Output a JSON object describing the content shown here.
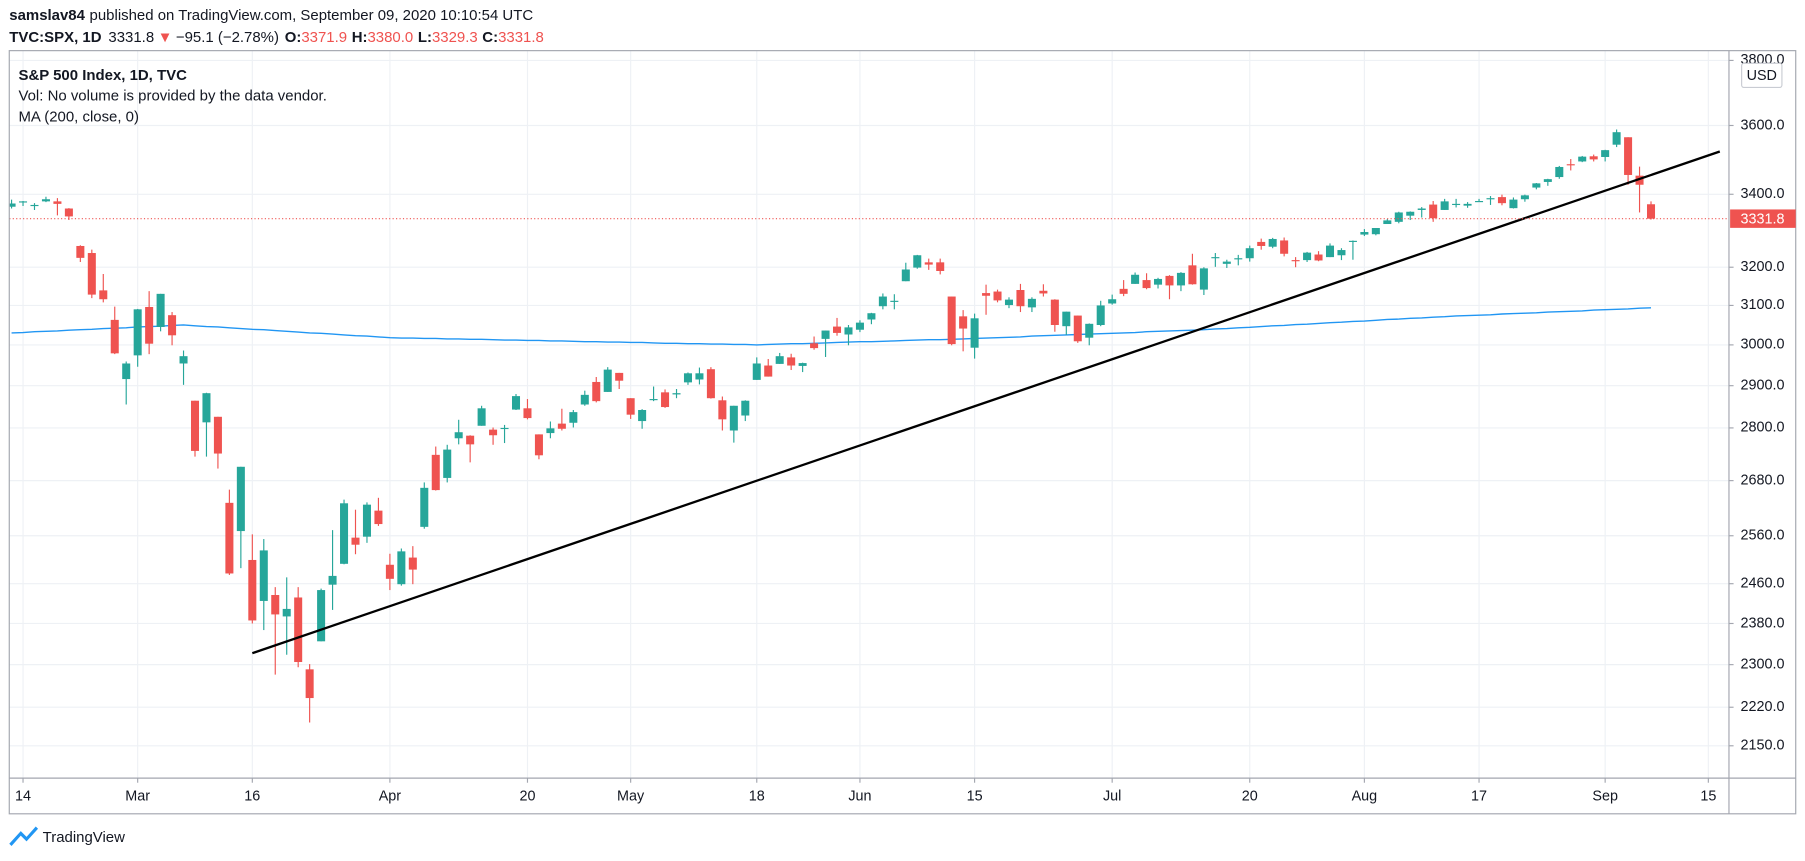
{
  "header": {
    "user": "samslav84",
    "published": "published on TradingView.com, September 09, 2020 10:10:54 UTC",
    "symbol": "TVC:SPX, 1D",
    "price": "3331.8",
    "arrow": "▼",
    "change": "−95.1 (−2.78%)",
    "o_label": "O:",
    "o": "3371.9",
    "h_label": "H:",
    "h": "3380.0",
    "l_label": "L:",
    "l": "3329.3",
    "c_label": "C:",
    "c": "3331.8"
  },
  "legend": {
    "title": "S&P 500 Index, 1D, TVC",
    "volume": "Vol: No volume is provided by the data vendor."
  },
  "currency": "USD",
  "brand": "TradingView",
  "chart_data": {
    "type": "candlestick",
    "log_scale": true,
    "grid": true,
    "up_color": "#26a69a",
    "down_color": "#ef5350",
    "categories": [
      "Feb 13",
      "Feb 14",
      "Feb 18",
      "Feb 19",
      "Feb 20",
      "Feb 21",
      "Feb 24",
      "Feb 25",
      "Feb 26",
      "Feb 27",
      "Feb 28",
      "Mar 2",
      "Mar 3",
      "Mar 4",
      "Mar 5",
      "Mar 6",
      "Mar 9",
      "Mar 10",
      "Mar 11",
      "Mar 12",
      "Mar 13",
      "Mar 16",
      "Mar 17",
      "Mar 18",
      "Mar 19",
      "Mar 20",
      "Mar 23",
      "Mar 24",
      "Mar 25",
      "Mar 26",
      "Mar 27",
      "Mar 30",
      "Mar 31",
      "Apr 1",
      "Apr 2",
      "Apr 3",
      "Apr 6",
      "Apr 7",
      "Apr 8",
      "Apr 9",
      "Apr 13",
      "Apr 14",
      "Apr 15",
      "Apr 16",
      "Apr 17",
      "Apr 20",
      "Apr 21",
      "Apr 22",
      "Apr 23",
      "Apr 24",
      "Apr 27",
      "Apr 28",
      "Apr 29",
      "Apr 30",
      "May 1",
      "May 4",
      "May 5",
      "May 6",
      "May 7",
      "May 8",
      "May 11",
      "May 12",
      "May 13",
      "May 14",
      "May 15",
      "May 18",
      "May 19",
      "May 20",
      "May 21",
      "May 22",
      "May 26",
      "May 27",
      "May 28",
      "May 29",
      "Jun 1",
      "Jun 2",
      "Jun 3",
      "Jun 4",
      "Jun 5",
      "Jun 8",
      "Jun 9",
      "Jun 10",
      "Jun 11",
      "Jun 12",
      "Jun 15",
      "Jun 16",
      "Jun 17",
      "Jun 18",
      "Jun 19",
      "Jun 22",
      "Jun 23",
      "Jun 24",
      "Jun 25",
      "Jun 26",
      "Jun 29",
      "Jun 30",
      "Jul 1",
      "Jul 2",
      "Jul 6",
      "Jul 7",
      "Jul 8",
      "Jul 9",
      "Jul 10",
      "Jul 13",
      "Jul 14",
      "Jul 15",
      "Jul 16",
      "Jul 17",
      "Jul 20",
      "Jul 21",
      "Jul 22",
      "Jul 23",
      "Jul 24",
      "Jul 27",
      "Jul 28",
      "Jul 29",
      "Jul 30",
      "Jul 31",
      "Aug 3",
      "Aug 4",
      "Aug 5",
      "Aug 6",
      "Aug 7",
      "Aug 10",
      "Aug 11",
      "Aug 12",
      "Aug 13",
      "Aug 14",
      "Aug 17",
      "Aug 18",
      "Aug 19",
      "Aug 20",
      "Aug 21",
      "Aug 24",
      "Aug 25",
      "Aug 26",
      "Aug 27",
      "Aug 28",
      "Aug 31",
      "Sep 1",
      "Sep 2",
      "Sep 3",
      "Sep 4",
      "Sep 8",
      "Sep 9",
      "Sep 10",
      "Sep 11",
      "Sep 14",
      "Sep 15",
      "Sep 16"
    ],
    "open": [
      3365,
      3378,
      3370,
      3380,
      3380,
      3360,
      3257,
      3238,
      3139,
      3063,
      2916,
      2974,
      3096,
      3045,
      3075,
      2954,
      2864,
      2813,
      2826,
      2631,
      2570,
      2509,
      2425,
      2437,
      2394,
      2432,
      2291,
      2345,
      2458,
      2501,
      2556,
      2558,
      2614,
      2499,
      2459,
      2514,
      2579,
      2738,
      2686,
      2776,
      2782,
      2805,
      2796,
      2800,
      2843,
      2846,
      2785,
      2788,
      2810,
      2812,
      2855,
      2909,
      2885,
      2931,
      2870,
      2816,
      2868,
      2884,
      2879,
      2908,
      2915,
      2940,
      2865,
      2794,
      2829,
      2914,
      2949,
      2953,
      2969,
      2948,
      3004,
      3015,
      3046,
      3026,
      3038,
      3064,
      3098,
      3112,
      3163,
      3199,
      3213,
      3213,
      3123,
      3072,
      2993,
      3132,
      3136,
      3101,
      3140,
      3095,
      3138,
      3115,
      3047,
      3074,
      3018,
      3050,
      3105,
      3143,
      3156,
      3166,
      3154,
      3177,
      3152,
      3205,
      3141,
      3225,
      3209,
      3224,
      3224,
      3268,
      3255,
      3272,
      3219,
      3219,
      3234,
      3227,
      3232,
      3270,
      3288,
      3289,
      3317,
      3323,
      3340,
      3356,
      3371,
      3356,
      3372,
      3368,
      3380,
      3388,
      3392,
      3361,
      3386,
      3419,
      3435,
      3449,
      3486,
      3494,
      3509,
      3507,
      3543,
      3565,
      3453,
      3371.9,
      null,
      null,
      null,
      null,
      null,
      null
    ],
    "high": [
      3385,
      3381,
      3375,
      3393,
      3389,
      3361,
      3259,
      3247,
      3182,
      3097,
      2959,
      3091,
      3137,
      3130,
      3083,
      2986,
      2864,
      2883,
      2826,
      2660,
      2711,
      2563,
      2553,
      2453,
      2473,
      2453,
      2301,
      2450,
      2572,
      2638,
      2616,
      2632,
      2642,
      2522,
      2533,
      2538,
      2676,
      2757,
      2761,
      2819,
      2783,
      2852,
      2801,
      2807,
      2880,
      2868,
      2785,
      2815,
      2845,
      2842,
      2888,
      2921,
      2945,
      2931,
      2870,
      2844,
      2898,
      2891,
      2892,
      2932,
      2944,
      2945,
      2874,
      2852,
      2865,
      2969,
      2965,
      2980,
      2978,
      2956,
      3021,
      3036,
      3068,
      3050,
      3062,
      3081,
      3131,
      3129,
      3212,
      3233,
      3223,
      3223,
      3123,
      3088,
      3079,
      3154,
      3141,
      3121,
      3156,
      3121,
      3155,
      3116,
      3084,
      3074,
      3054,
      3112,
      3128,
      3166,
      3186,
      3184,
      3172,
      3179,
      3187,
      3236,
      3200,
      3238,
      3220,
      3233,
      3258,
      3277,
      3279,
      3280,
      3227,
      3241,
      3243,
      3264,
      3251,
      3272,
      3303,
      3306,
      3331,
      3351,
      3352,
      3364,
      3381,
      3387,
      3387,
      3378,
      3387,
      3395,
      3399,
      3391,
      3399,
      3432,
      3444,
      3481,
      3501,
      3510,
      3514,
      3528,
      3588,
      3565,
      3479,
      3380,
      null,
      null,
      null,
      null,
      null,
      null
    ],
    "low": [
      3360,
      3367,
      3356,
      3378,
      3341,
      3328,
      3214,
      3119,
      3108,
      2977,
      2855,
      2946,
      2977,
      3034,
      2999,
      2902,
      2734,
      2734,
      2707,
      2478,
      2492,
      2380,
      2367,
      2281,
      2319,
      2295,
      2192,
      2345,
      2407,
      2500,
      2521,
      2545,
      2581,
      2447,
      2456,
      2459,
      2575,
      2658,
      2676,
      2762,
      2721,
      2805,
      2761,
      2765,
      2842,
      2820,
      2728,
      2776,
      2794,
      2801,
      2852,
      2860,
      2885,
      2892,
      2821,
      2798,
      2863,
      2847,
      2870,
      2902,
      2903,
      2869,
      2794,
      2766,
      2816,
      2914,
      2922,
      2953,
      2938,
      2933,
      2988,
      2970,
      3023,
      2999,
      3032,
      3052,
      3090,
      3090,
      3163,
      3196,
      3193,
      3181,
      2999,
      2984,
      2966,
      3076,
      3108,
      3093,
      3083,
      3083,
      3123,
      3033,
      3025,
      3005,
      2999,
      3047,
      3102,
      3124,
      3156,
      3142,
      3144,
      3116,
      3137,
      3154,
      3127,
      3201,
      3198,
      3205,
      3215,
      3247,
      3251,
      3229,
      3200,
      3214,
      3216,
      3227,
      3219,
      3220,
      3284,
      3286,
      3317,
      3319,
      3328,
      3335,
      3323,
      3356,
      3363,
      3362,
      3379,
      3370,
      3369,
      3360,
      3379,
      3414,
      3424,
      3444,
      3468,
      3492,
      3494,
      3494,
      3536,
      3427,
      3349,
      3329.3,
      null,
      null,
      null,
      null,
      null,
      null
    ],
    "close": [
      3374,
      3380,
      3370,
      3386,
      3373,
      3338,
      3225,
      3128,
      3116,
      2979,
      2954,
      3090,
      3003,
      3130,
      3024,
      2972,
      2747,
      2882,
      2741,
      2481,
      2711,
      2386,
      2529,
      2398,
      2409,
      2305,
      2237,
      2447,
      2476,
      2630,
      2541,
      2627,
      2585,
      2470,
      2527,
      2489,
      2664,
      2659,
      2750,
      2790,
      2762,
      2846,
      2783,
      2800,
      2875,
      2823,
      2737,
      2799,
      2798,
      2837,
      2878,
      2863,
      2939,
      2912,
      2831,
      2842,
      2868,
      2849,
      2882,
      2930,
      2930,
      2870,
      2820,
      2852,
      2864,
      2954,
      2922,
      2972,
      2949,
      2955,
      2992,
      3036,
      3030,
      3044,
      3056,
      3080,
      3123,
      3112,
      3194,
      3232,
      3207,
      3190,
      3002,
      3041,
      3067,
      3125,
      3113,
      3115,
      3098,
      3117,
      3131,
      3050,
      3084,
      3009,
      3053,
      3100,
      3116,
      3130,
      3180,
      3145,
      3169,
      3152,
      3185,
      3155,
      3197,
      3227,
      3215,
      3224,
      3251,
      3257,
      3276,
      3236,
      3216,
      3239,
      3218,
      3258,
      3246,
      3271,
      3295,
      3306,
      3327,
      3349,
      3351,
      3360,
      3333,
      3380,
      3373,
      3373,
      3381,
      3389,
      3375,
      3385,
      3397,
      3431,
      3443,
      3478,
      3485,
      3508,
      3500,
      3527,
      3580,
      3455,
      3427,
      3331.8,
      null,
      null,
      null,
      null,
      null,
      null
    ],
    "ma": {
      "name": "MA (200, close, 0)",
      "color": "#2196f3",
      "values": [
        3030,
        3031,
        3033,
        3034,
        3035,
        3037,
        3038,
        3039,
        3041,
        3042,
        3043,
        3045,
        3046,
        3047,
        3049,
        3050,
        3048,
        3046,
        3045,
        3043,
        3041,
        3039,
        3038,
        3036,
        3034,
        3032,
        3030,
        3029,
        3027,
        3025,
        3023,
        3022,
        3020,
        3018,
        3017,
        3017,
        3016,
        3016,
        3015,
        3015,
        3014,
        3014,
        3013,
        3012,
        3012,
        3011,
        3011,
        3010,
        3010,
        3009,
        3008,
        3008,
        3007,
        3007,
        3006,
        3006,
        3005,
        3004,
        3004,
        3003,
        3003,
        3002,
        3002,
        3001,
        3001,
        3000,
        3001,
        3002,
        3003,
        3003,
        3004,
        3005,
        3006,
        3007,
        3008,
        3008,
        3009,
        3010,
        3011,
        3012,
        3013,
        3013,
        3014,
        3015,
        3016,
        3017,
        3018,
        3019,
        3020,
        3022,
        3023,
        3024,
        3025,
        3026,
        3027,
        3028,
        3029,
        3030,
        3031,
        3033,
        3034,
        3035,
        3036,
        3037,
        3038,
        3040,
        3041,
        3043,
        3044,
        3046,
        3048,
        3049,
        3051,
        3052,
        3054,
        3056,
        3057,
        3059,
        3060,
        3062,
        3064,
        3065,
        3067,
        3068,
        3070,
        3071,
        3073,
        3074,
        3075,
        3076,
        3078,
        3079,
        3080,
        3081,
        3083,
        3084,
        3085,
        3086,
        3088,
        3089,
        3090,
        3091,
        3093,
        3094,
        null,
        null,
        null,
        null,
        null,
        null
      ]
    },
    "trendline": {
      "x": [
        "Mar 16",
        "Sep 16"
      ],
      "values": [
        2322,
        3523
      ],
      "color": "#000000"
    },
    "price_line_color": "#ef5350",
    "ylim": [
      2093,
      3831
    ],
    "yticks": [
      {
        "value": 3800,
        "label": "3800.0"
      },
      {
        "value": 3600,
        "label": "3600.0"
      },
      {
        "value": 3400,
        "label": "3400.0"
      },
      {
        "value": 3200,
        "label": "3200.0"
      },
      {
        "value": 3100,
        "label": "3100.0"
      },
      {
        "value": 3000,
        "label": "3000.0"
      },
      {
        "value": 2900,
        "label": "2900.0"
      },
      {
        "value": 2800,
        "label": "2800.0"
      },
      {
        "value": 2680,
        "label": "2680.0"
      },
      {
        "value": 2560,
        "label": "2560.0"
      },
      {
        "value": 2460,
        "label": "2460.0"
      },
      {
        "value": 2380,
        "label": "2380.0"
      },
      {
        "value": 2300,
        "label": "2300.0"
      },
      {
        "value": 2220,
        "label": "2220.0"
      },
      {
        "value": 2150,
        "label": "2150.0"
      }
    ],
    "xticks": [
      {
        "value": "Feb 14",
        "label": "14"
      },
      {
        "value": "Mar 2",
        "label": "Mar"
      },
      {
        "value": "Mar 16",
        "label": "16"
      },
      {
        "value": "Apr 1",
        "label": "Apr"
      },
      {
        "value": "Apr 20",
        "label": "20"
      },
      {
        "value": "May 1",
        "label": "May"
      },
      {
        "value": "May 18",
        "label": "18"
      },
      {
        "value": "Jun 1",
        "label": "Jun"
      },
      {
        "value": "Jun 15",
        "label": "15"
      },
      {
        "value": "Jul 1",
        "label": "Jul"
      },
      {
        "value": "Jul 20",
        "label": "20"
      },
      {
        "value": "Aug 3",
        "label": "Aug"
      },
      {
        "value": "Aug 17",
        "label": "17"
      },
      {
        "value": "Sep 1",
        "label": "Sep"
      },
      {
        "value": "Sep 15",
        "label": "15"
      }
    ]
  }
}
